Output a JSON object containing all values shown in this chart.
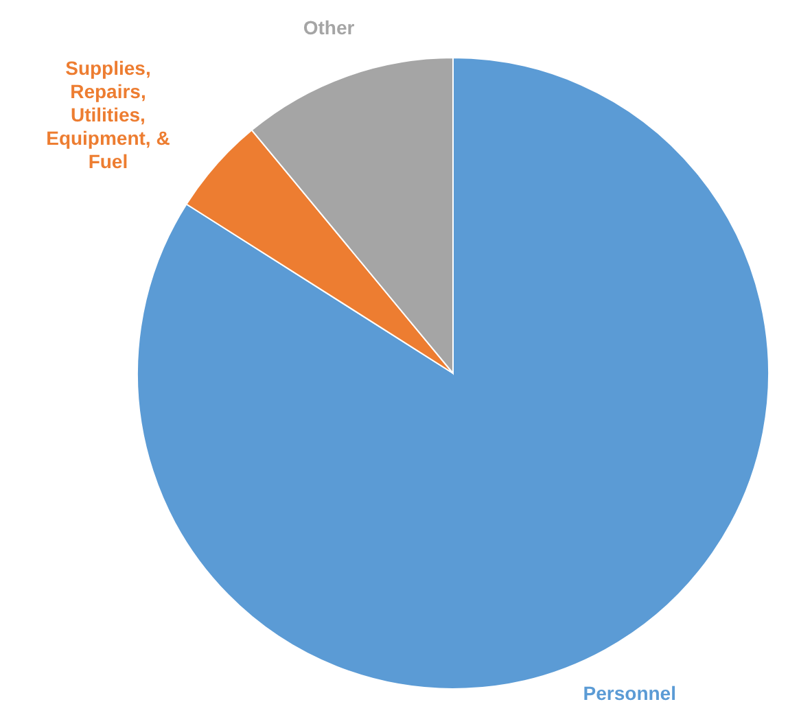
{
  "chart_data": {
    "type": "pie",
    "categories": [
      "Personnel",
      "Supplies, Repairs, Utilities, Equipment, & Fuel",
      "Other"
    ],
    "values": [
      84,
      5,
      11
    ],
    "colors": [
      "#5b9bd5",
      "#ed7d31",
      "#a5a5a5"
    ]
  }
}
